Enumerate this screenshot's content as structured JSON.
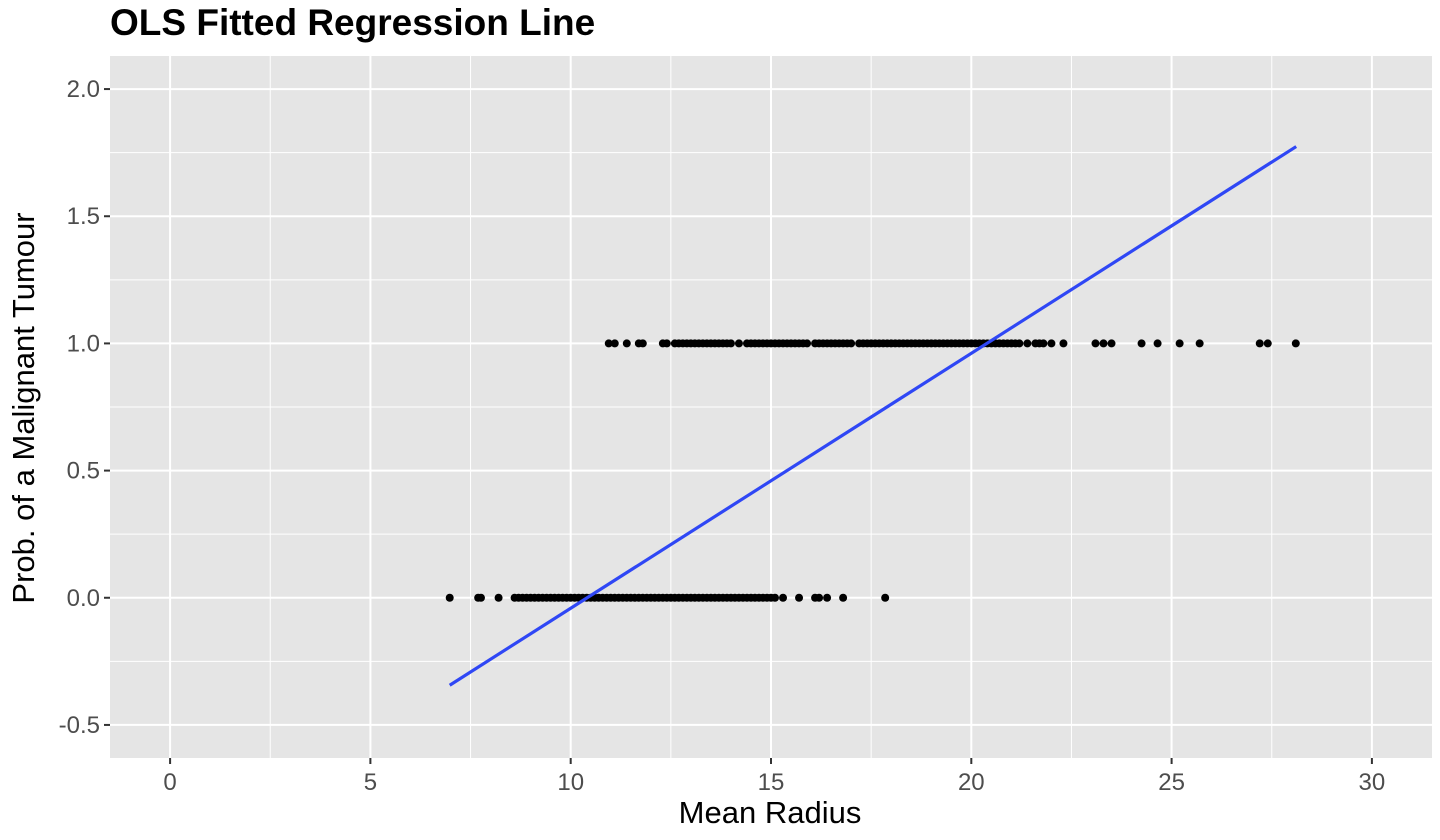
{
  "chart_data": {
    "type": "scatter",
    "title": "OLS Fitted Regression Line",
    "xlabel": "Mean Radius",
    "ylabel": "Prob. of a Malignant Tumour",
    "xlim": [
      -1.5,
      31.5
    ],
    "ylim": [
      -0.63,
      2.13
    ],
    "x_ticks": [
      0,
      5,
      10,
      15,
      20,
      25,
      30
    ],
    "x_tick_labels": [
      "0",
      "5",
      "10",
      "15",
      "20",
      "25",
      "30"
    ],
    "y_ticks": [
      -0.5,
      0.0,
      0.5,
      1.0,
      1.5,
      2.0
    ],
    "y_tick_labels": [
      "-0.5",
      "0.0",
      "0.5",
      "1.0",
      "1.5",
      "2.0"
    ],
    "grid": true,
    "legend": "none",
    "colors": {
      "panel": "#e5e5e5",
      "grid": "#ffffff",
      "points": "#000000",
      "fit_line": "#2f47f5"
    },
    "series": [
      {
        "kind": "points",
        "y": 0,
        "x": [
          6.98,
          7.69,
          7.76,
          8.2,
          8.6,
          8.7,
          8.8,
          8.9,
          9.0,
          9.1,
          9.2,
          9.3,
          9.4,
          9.5,
          9.6,
          9.7,
          9.8,
          9.9,
          10.0,
          10.1,
          10.2,
          10.3,
          10.4,
          10.5,
          10.6,
          10.7,
          10.8,
          10.9,
          11.0,
          11.1,
          11.2,
          11.3,
          11.4,
          11.5,
          11.6,
          11.7,
          11.8,
          11.9,
          12.0,
          12.1,
          12.2,
          12.3,
          12.4,
          12.5,
          12.6,
          12.7,
          12.8,
          12.9,
          13.0,
          13.1,
          13.2,
          13.3,
          13.4,
          13.5,
          13.6,
          13.7,
          13.8,
          13.9,
          14.0,
          14.1,
          14.2,
          14.3,
          14.4,
          14.5,
          14.6,
          14.7,
          14.8,
          14.9,
          15.0,
          15.1,
          15.3,
          15.7,
          16.1,
          16.2,
          16.4,
          16.8,
          17.85
        ]
      },
      {
        "kind": "points",
        "y": 1,
        "x": [
          10.95,
          11.1,
          11.4,
          11.7,
          11.8,
          12.3,
          12.4,
          12.6,
          12.7,
          12.8,
          12.9,
          13.0,
          13.1,
          13.2,
          13.3,
          13.4,
          13.5,
          13.6,
          13.7,
          13.8,
          13.9,
          14.0,
          14.2,
          14.4,
          14.5,
          14.6,
          14.7,
          14.8,
          14.9,
          15.0,
          15.1,
          15.2,
          15.3,
          15.4,
          15.5,
          15.6,
          15.7,
          15.8,
          15.9,
          16.1,
          16.2,
          16.3,
          16.4,
          16.5,
          16.6,
          16.7,
          16.8,
          16.9,
          17.0,
          17.2,
          17.3,
          17.4,
          17.5,
          17.6,
          17.7,
          17.8,
          17.9,
          18.0,
          18.1,
          18.2,
          18.3,
          18.4,
          18.5,
          18.6,
          18.7,
          18.8,
          18.9,
          19.0,
          19.1,
          19.2,
          19.3,
          19.4,
          19.5,
          19.6,
          19.7,
          19.8,
          19.9,
          20.0,
          20.1,
          20.2,
          20.3,
          20.4,
          20.5,
          20.6,
          20.7,
          20.8,
          20.9,
          21.0,
          21.1,
          21.2,
          21.4,
          21.6,
          21.7,
          21.8,
          22.0,
          22.3,
          23.1,
          23.3,
          23.5,
          24.25,
          24.65,
          25.2,
          25.7,
          27.2,
          27.4,
          28.1
        ]
      },
      {
        "kind": "line",
        "name": "",
        "x": [
          6.98,
          28.11
        ],
        "y": [
          -0.344,
          1.774
        ]
      }
    ]
  }
}
